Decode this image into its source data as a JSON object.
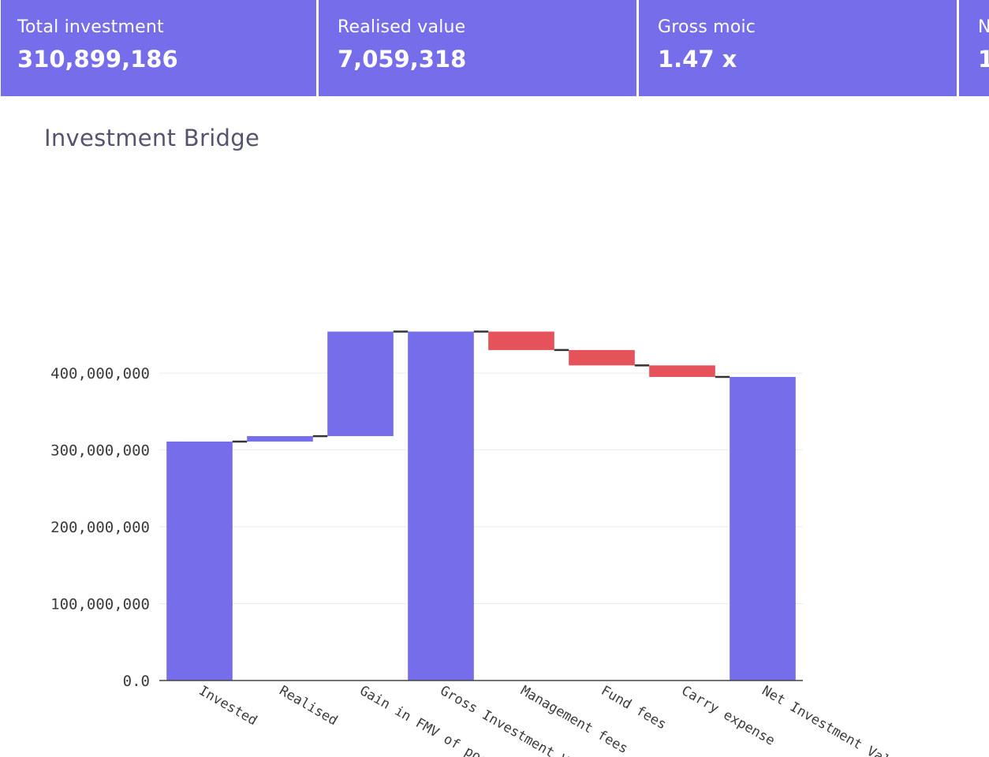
{
  "kpis": [
    {
      "label": "Total investment",
      "value": "310,899,186"
    },
    {
      "label": "Realised value",
      "value": "7,059,318"
    },
    {
      "label": "Gross moic",
      "value": "1.47 x"
    },
    {
      "label": "N",
      "value": "1."
    }
  ],
  "chart_data": {
    "type": "waterfall",
    "title": "Investment Bridge",
    "xlabel": "",
    "ylabel": "",
    "ylim": [
      0,
      470000000
    ],
    "y_ticks": [
      {
        "value": 0,
        "label": "0.0"
      },
      {
        "value": 100000000,
        "label": "100,000,000"
      },
      {
        "value": 200000000,
        "label": "200,000,000"
      },
      {
        "value": 300000000,
        "label": "300,000,000"
      },
      {
        "value": 400000000,
        "label": "400,000,000"
      }
    ],
    "grid": true,
    "categories": [
      "Invested",
      "Realised",
      "Gain in FMV of portfolio",
      "Gross Investment Value",
      "Management fees",
      "Fund fees",
      "Carry expense",
      "Net Investment Value"
    ],
    "measure": [
      "absolute",
      "relative",
      "relative",
      "total",
      "relative",
      "relative",
      "relative",
      "total"
    ],
    "values": [
      310899186,
      7059318,
      136000000,
      453958504,
      -24000000,
      -20000000,
      -15000000,
      394958504
    ],
    "colors": {
      "increase": "#756de9",
      "decrease": "#e5525a",
      "total": "#756de9",
      "connector": "#333333"
    }
  }
}
